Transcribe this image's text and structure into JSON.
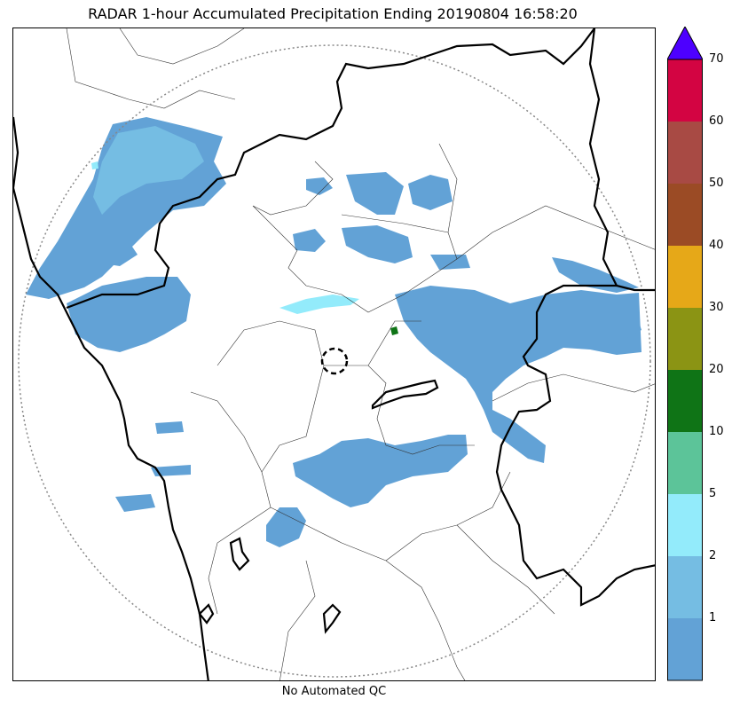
{
  "title": "RADAR 1-hour Accumulated Precipitation Ending 20190804 16:58:20",
  "footer_note": "No Automated QC",
  "colorbar": {
    "levels": [
      {
        "label": "",
        "color": "#62a2d6"
      },
      {
        "label": "1",
        "color": "#75bde3"
      },
      {
        "label": "2",
        "color": "#93ebfb"
      },
      {
        "label": "5",
        "color": "#5cc499"
      },
      {
        "label": "10",
        "color": "#0f7416"
      },
      {
        "label": "20",
        "color": "#8b9414"
      },
      {
        "label": "30",
        "color": "#e6a818"
      },
      {
        "label": "40",
        "color": "#9b4b25"
      },
      {
        "label": "50",
        "color": "#a84a44"
      },
      {
        "label": "60",
        "color": "#d30442"
      }
    ],
    "top_label": "70",
    "overflow_color": "#4d00ff"
  },
  "colors": {
    "precip_light": "#62a2d6",
    "precip_mid": "#75bde3",
    "precip_cyan": "#93ebfb",
    "precip_green": "#0f7416",
    "boundary": "#000000",
    "range_ring": "#888888"
  }
}
